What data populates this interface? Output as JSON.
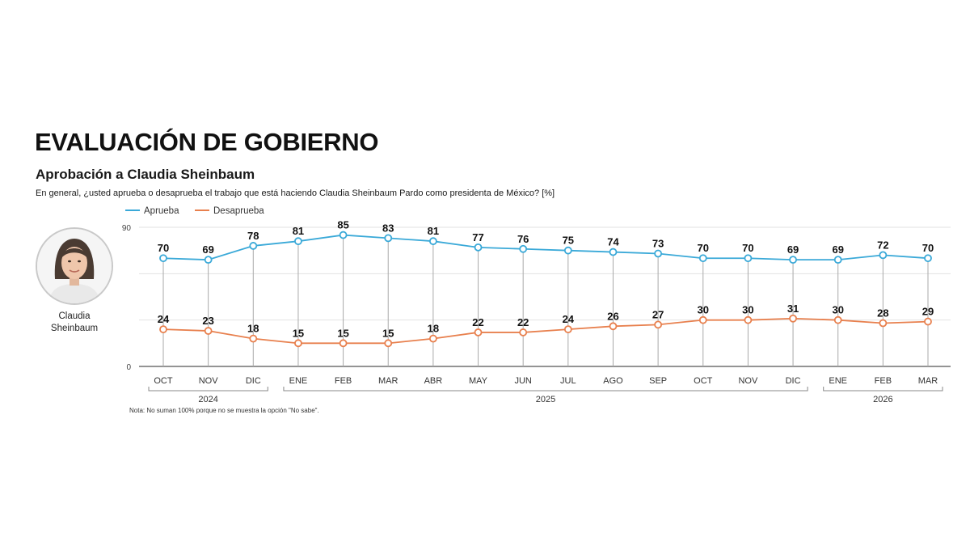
{
  "chart_data": {
    "type": "line",
    "title": "EVALUACIÓN DE GOBIERNO",
    "subtitle": "Aprobación a Claudia Sheinbaum",
    "question": "En general, ¿usted aprueba o desaprueba el trabajo que está haciendo Claudia Sheinbaum Pardo como presidenta de México? [%]",
    "note": "Nota: No suman 100% porque no se muestra la opción \"No sabe\".",
    "categories": [
      "OCT",
      "NOV",
      "DIC",
      "ENE",
      "FEB",
      "MAR",
      "ABR",
      "MAY",
      "JUN",
      "JUL",
      "AGO",
      "SEP",
      "OCT",
      "NOV",
      "DIC",
      "ENE",
      "FEB",
      "MAR"
    ],
    "year_groups": [
      {
        "label": "2024",
        "start": 0,
        "end": 2
      },
      {
        "label": "2025",
        "start": 3,
        "end": 14
      },
      {
        "label": "2026",
        "start": 15,
        "end": 17
      }
    ],
    "series": [
      {
        "name": "Aprueba",
        "color": "#3aa9d8",
        "values": [
          70,
          69,
          78,
          81,
          85,
          83,
          81,
          77,
          76,
          75,
          74,
          73,
          70,
          70,
          69,
          69,
          72,
          70
        ]
      },
      {
        "name": "Desaprueba",
        "color": "#e8804e",
        "values": [
          24,
          23,
          18,
          15,
          15,
          15,
          18,
          22,
          22,
          24,
          26,
          27,
          30,
          30,
          31,
          30,
          28,
          29
        ]
      }
    ],
    "ylim": [
      0,
      90
    ],
    "yticks": [
      0,
      90
    ],
    "legend_position": "top-left",
    "grid": true
  },
  "person": {
    "name_line1": "Claudia",
    "name_line2": "Sheinbaum"
  }
}
